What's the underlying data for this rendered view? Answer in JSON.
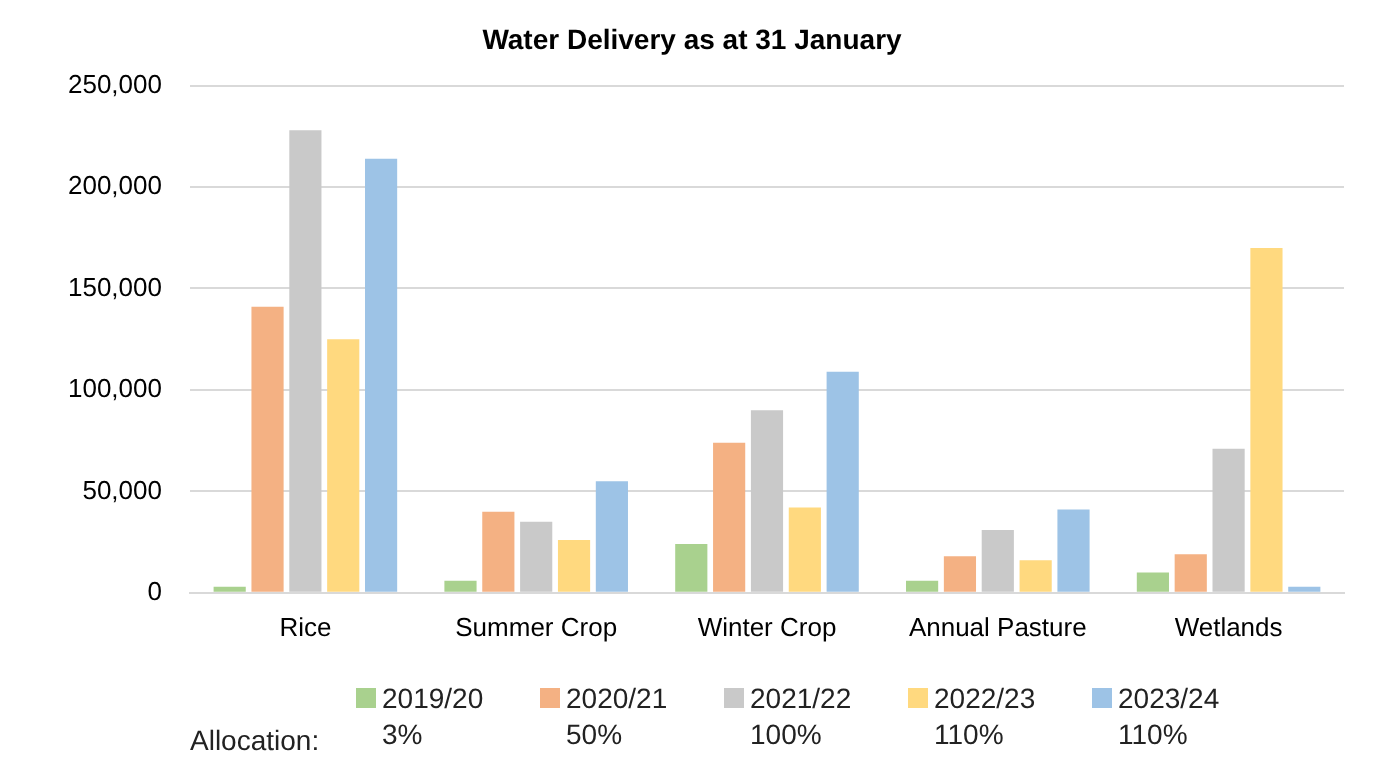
{
  "chart_data": {
    "type": "bar",
    "title": "Water Delivery as at 31 January",
    "legend_title": "Allocation:",
    "categories": [
      "Rice",
      "Summer Crop",
      "Winter Crop",
      "Annual Pasture",
      "Wetlands"
    ],
    "series": [
      {
        "name": "2019/20\n3%",
        "color": "#a9d18e",
        "values": [
          3000,
          6000,
          24000,
          6000,
          10000
        ]
      },
      {
        "name": "2020/21\n50%",
        "color": "#f4b183",
        "values": [
          141000,
          40000,
          74000,
          18000,
          19000
        ]
      },
      {
        "name": "2021/22\n100%",
        "color": "#c9c9c9",
        "values": [
          228000,
          35000,
          90000,
          31000,
          71000
        ]
      },
      {
        "name": "2022/23\n110%",
        "color": "#ffd97f",
        "values": [
          125000,
          26000,
          42000,
          16000,
          170000
        ]
      },
      {
        "name": "2023/24\n110%",
        "color": "#9dc3e6",
        "values": [
          214000,
          55000,
          109000,
          41000,
          3000
        ]
      }
    ],
    "ylim": [
      0,
      250000
    ],
    "yticks": [
      0,
      {
        "value": 50000,
        "label": "50,000"
      },
      {
        "value": 100000,
        "label": "100,000"
      },
      {
        "value": 150000,
        "label": "150,000"
      },
      {
        "value": 200000,
        "label": "200,000"
      },
      {
        "value": 250000,
        "label": "250,000"
      }
    ],
    "grid": "y",
    "legend": "bottom"
  }
}
